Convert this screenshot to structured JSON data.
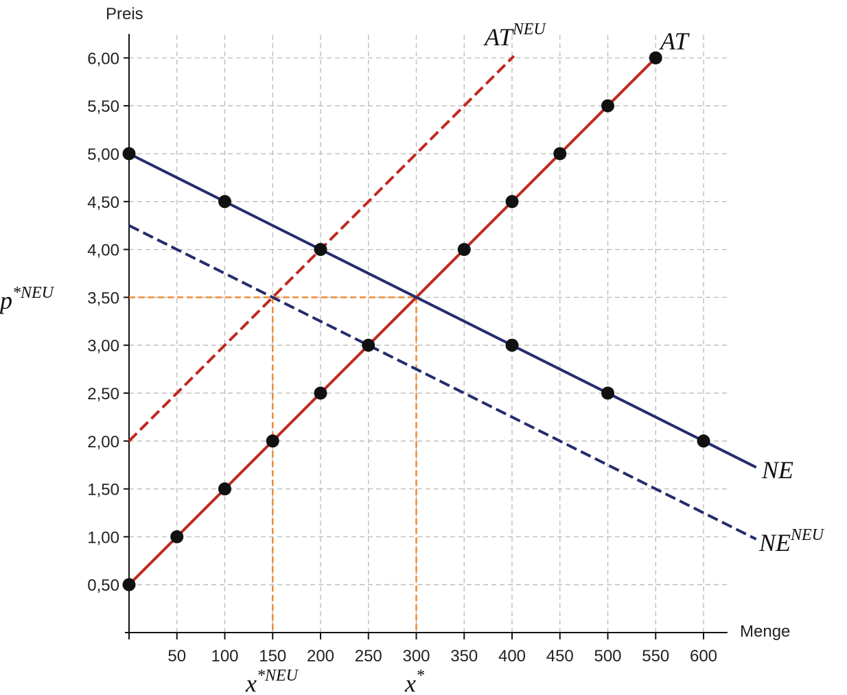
{
  "chart_data": {
    "type": "line",
    "xlabel": "Menge",
    "ylabel": "Preis",
    "xlim": [
      0,
      625
    ],
    "ylim": [
      0,
      6.25
    ],
    "x_ticks": [
      50,
      100,
      150,
      200,
      250,
      300,
      350,
      400,
      450,
      500,
      550,
      600
    ],
    "x_tick_labels": [
      "50",
      "100",
      "150",
      "200",
      "250",
      "300",
      "350",
      "400",
      "450",
      "500",
      "550",
      "600"
    ],
    "y_ticks": [
      0.5,
      1,
      1.5,
      2,
      2.5,
      3,
      3.5,
      4,
      4.5,
      5,
      5.5,
      6
    ],
    "y_tick_labels": [
      "0,50",
      "1,00",
      "1,50",
      "2,00",
      "2,50",
      "3,00",
      "3,50",
      "4,00",
      "4,50",
      "5,00",
      "5,50",
      "6,00"
    ],
    "grid": true,
    "series": [
      {
        "name": "AT",
        "label_main": "AT",
        "label_sup": "",
        "color": "#c0281e",
        "style": "solid",
        "line": [
          [
            0,
            0.5
          ],
          [
            550,
            6.0
          ]
        ],
        "points": [
          [
            0,
            0.5
          ],
          [
            50,
            1.0
          ],
          [
            100,
            1.5
          ],
          [
            150,
            2.0
          ],
          [
            200,
            2.5
          ],
          [
            250,
            3.0
          ],
          [
            350,
            4.0
          ],
          [
            400,
            4.5
          ],
          [
            450,
            5.0
          ],
          [
            500,
            5.5
          ],
          [
            550,
            6.0
          ]
        ]
      },
      {
        "name": "NE",
        "label_main": "NE",
        "label_sup": "",
        "color": "#232d6e",
        "style": "solid",
        "line": [
          [
            0,
            5.0
          ],
          [
            655,
            1.725
          ]
        ],
        "points": [
          [
            0,
            5.0
          ],
          [
            100,
            4.5
          ],
          [
            200,
            4.0
          ],
          [
            400,
            3.0
          ],
          [
            500,
            2.5
          ],
          [
            600,
            2.0
          ]
        ]
      },
      {
        "name": "AT^NEU",
        "label_main": "AT",
        "label_sup": "NEU",
        "color": "#c0281e",
        "style": "dashed",
        "line": [
          [
            0,
            2.0
          ],
          [
            402,
            6.02
          ]
        ],
        "points": []
      },
      {
        "name": "NE^NEU",
        "label_main": "NE",
        "label_sup": "NEU",
        "color": "#232d6e",
        "style": "dashed",
        "line": [
          [
            0,
            4.25
          ],
          [
            655,
            0.975
          ]
        ],
        "points": []
      }
    ],
    "equilibrium": {
      "x": 300,
      "y": 3.5,
      "label_main": "x",
      "label_sup": "*"
    },
    "equilibrium_new": {
      "x": 150,
      "y": 3.5,
      "label_main": "x",
      "label_sup": "*NEU"
    },
    "price_new_label": {
      "label_main": "p",
      "label_sup": "*NEU"
    },
    "guide_color": "#f08a30"
  }
}
